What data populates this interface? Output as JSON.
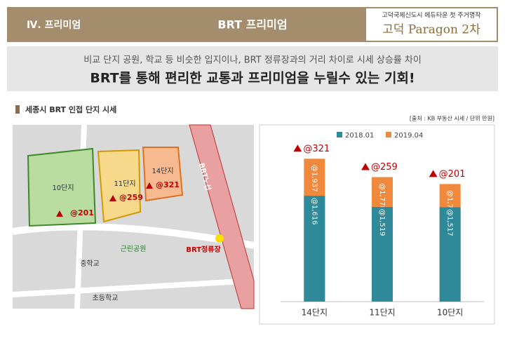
{
  "header": {
    "section": "Ⅳ. 프리미엄",
    "title": "BRT 프리미엄",
    "tagline": "고덕국제신도시 에듀타운 첫 주거명작",
    "brand": "고덕 Paragon 2차"
  },
  "intro": {
    "line1": "비교 단지 공원, 학교 등 비슷한 입지이나, BRT 정류장과의 거리 차이로 시세 상승률 차이",
    "line2": "BRT를 통해 편리한 교통과 프리미엄을 누릴수 있는 기회!"
  },
  "section_title": "세종시 BRT 인접 단지 시세",
  "source": "[출처 : KB 부동산 시세 / 단위 만원]",
  "map": {
    "blocks": [
      {
        "name": "10단지",
        "label": "@201"
      },
      {
        "name": "11단지",
        "label": "@259"
      },
      {
        "name": "14단지",
        "label": "@321"
      }
    ],
    "route": "BRT노선",
    "stop": "BRT정류장",
    "park": "근린공원",
    "school1": "중학교",
    "school2": "초등학교"
  },
  "chart_data": {
    "type": "bar",
    "categories": [
      "14단지",
      "11단지",
      "10단지"
    ],
    "series": [
      {
        "name": "2019.04",
        "color": "#f0893c",
        "values": [
          1937,
          1778,
          1718
        ],
        "value_labels": [
          "@1,937",
          "@1,778",
          "@1,718"
        ]
      },
      {
        "name": "2018.01",
        "color": "#2e8a98",
        "values": [
          1616,
          1519,
          1517
        ],
        "value_labels": [
          "@1,616",
          "@1,519",
          "@1,517"
        ]
      }
    ],
    "increase": {
      "color": "#c00000",
      "values": [
        321,
        259,
        201
      ],
      "value_labels": [
        "@321",
        "@259",
        "@201"
      ]
    },
    "ylim": [
      700,
      2200
    ]
  }
}
